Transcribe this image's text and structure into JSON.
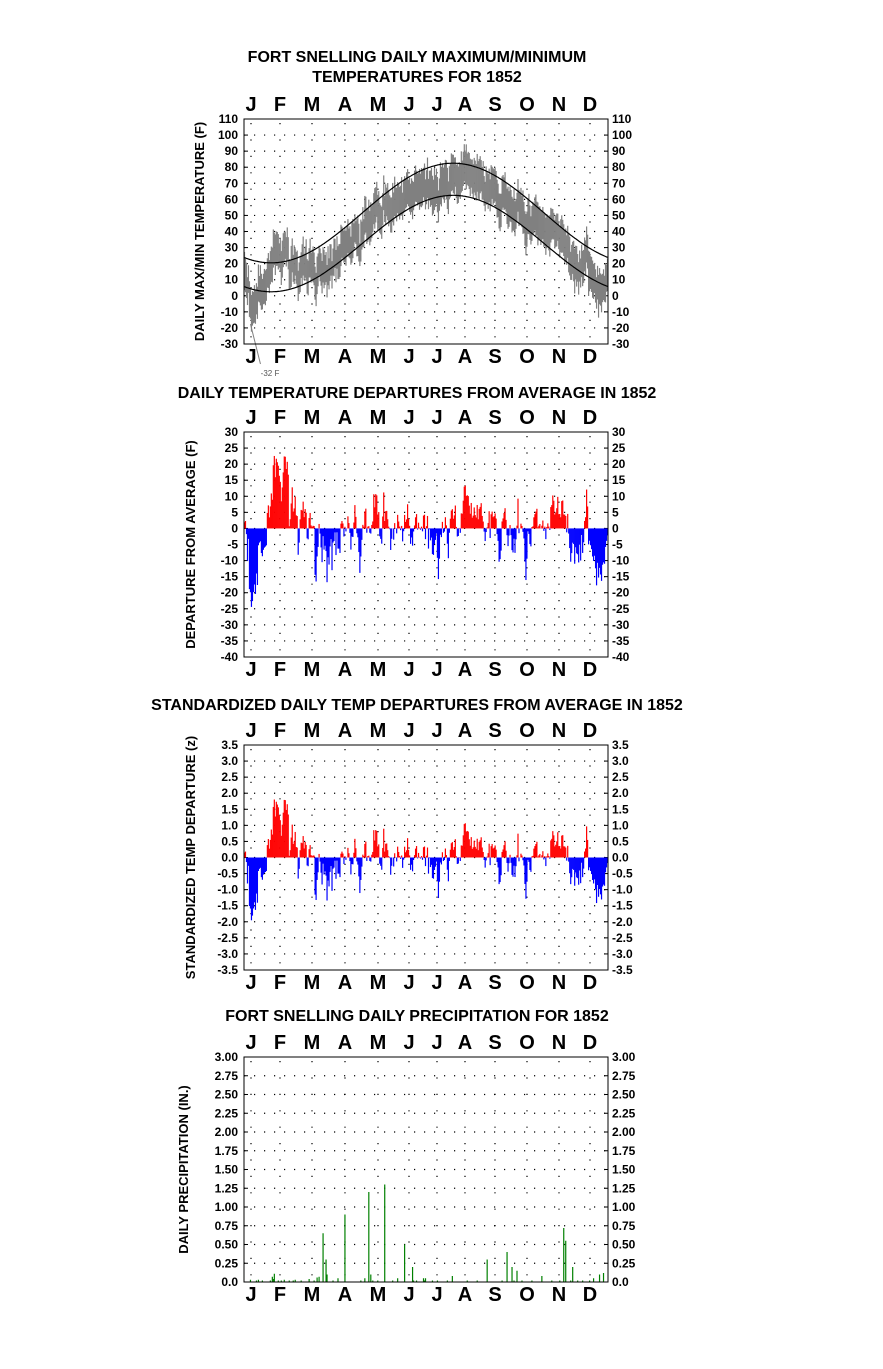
{
  "month_labels": [
    "J",
    "F",
    "M",
    "A",
    "M",
    "J",
    "J",
    "A",
    "S",
    "O",
    "N",
    "D"
  ],
  "colors": {
    "positive": "#ff0000",
    "negative": "#0000ff",
    "precip": "#008000",
    "observed": "#808080",
    "normal": "#000000",
    "axis": "#000000"
  },
  "chart_data": [
    {
      "id": "maxmin",
      "type": "line",
      "title": [
        "FORT SNELLING DAILY MAXIMUM/MINIMUM",
        "TEMPERATURES FOR 1852"
      ],
      "ylabel": "DAILY MAX/MIN TEMPERATURE (F)",
      "ylim": [
        -30,
        110
      ],
      "ytick_step": 10,
      "yticks": [
        "-30",
        "-20",
        "-10",
        "0",
        "10",
        "20",
        "30",
        "40",
        "50",
        "60",
        "70",
        "80",
        "90",
        "100",
        "110"
      ],
      "grid": "dotted",
      "annotation": "-32 F",
      "annotation_point": {
        "day": 9,
        "value": -32
      },
      "x_axis": "day of year 1852 (Jan-Dec)",
      "series": [
        {
          "role": "observed max/min",
          "style": "gray vertical daily range"
        },
        {
          "role": "normal max",
          "style": "black line",
          "values_monthly": [
            21,
            26,
            36,
            52,
            66,
            76,
            82,
            80,
            72,
            58,
            40,
            26
          ]
        },
        {
          "role": "normal min",
          "style": "black line",
          "values_monthly": [
            3,
            7,
            17,
            32,
            44,
            55,
            62,
            60,
            50,
            38,
            22,
            8
          ]
        }
      ]
    },
    {
      "id": "departure",
      "type": "bar",
      "title": [
        "DAILY TEMPERATURE DEPARTURES FROM AVERAGE IN 1852"
      ],
      "ylabel": "DEPARTURE FROM AVERAGE (F)",
      "ylim": [
        -40,
        30
      ],
      "ytick_step": 5,
      "yticks": [
        "-40",
        "-35",
        "-30",
        "-25",
        "-20",
        "-15",
        "-10",
        "-5",
        "0",
        "5",
        "10",
        "15",
        "20",
        "25",
        "30"
      ],
      "grid": "dotted",
      "x_axis": "day of year 1852 (Jan-Dec)"
    },
    {
      "id": "zscore",
      "type": "bar",
      "title": [
        "STANDARDIZED DAILY TEMP DEPARTURES FROM AVERAGE IN 1852"
      ],
      "ylabel": "STANDARDIZED TEMP DEPARTURE (z)",
      "ylim": [
        -3.5,
        3.5
      ],
      "ytick_step": 0.5,
      "yticks": [
        "-3.5",
        "-3.0",
        "-2.5",
        "-2.0",
        "-1.5",
        "-1.0",
        "-0.5",
        "0.0",
        "0.5",
        "1.0",
        "1.5",
        "2.0",
        "2.5",
        "3.0",
        "3.5"
      ],
      "grid": "dotted",
      "x_axis": "day of year 1852 (Jan-Dec)"
    },
    {
      "id": "precip",
      "type": "bar",
      "title": [
        "FORT SNELLING DAILY PRECIPITATION FOR 1852"
      ],
      "ylabel": "DAILY PRECIPITATION (IN.)",
      "ylim": [
        0,
        3
      ],
      "ytick_step": 0.25,
      "yticks": [
        "0.0",
        "0.25",
        "0.50",
        "0.75",
        "1.00",
        "1.25",
        "1.50",
        "1.75",
        "2.00",
        "2.25",
        "2.50",
        "2.75",
        "3.00"
      ],
      "grid": "dotted",
      "x_axis": "day of year 1852 (Jan-Dec)",
      "days": [
        7,
        13,
        15,
        19,
        27,
        29,
        30,
        31,
        35,
        38,
        41,
        46,
        50,
        52,
        58,
        66,
        71,
        74,
        76,
        80,
        83,
        84,
        90,
        95,
        102,
        118,
        122,
        126,
        128,
        130,
        135,
        142,
        150,
        155,
        162,
        170,
        171,
        174,
        181,
        182,
        183,
        190,
        195,
        205,
        210,
        225,
        235,
        245,
        260,
        265,
        270,
        272,
        275,
        280,
        290,
        300,
        310,
        318,
        322,
        324,
        329,
        331,
        336,
        341,
        348,
        352,
        358,
        362
      ],
      "values": [
        0.03,
        0.02,
        0.03,
        0.02,
        0.02,
        0.07,
        0.04,
        0.11,
        0.02,
        0.02,
        0.03,
        0.02,
        0.02,
        0.03,
        0.02,
        0.04,
        0.02,
        0.06,
        0.07,
        0.65,
        0.3,
        0.1,
        0.02,
        0.05,
        0.9,
        0.02,
        0.05,
        1.2,
        0.1,
        0.02,
        0.02,
        1.3,
        0.02,
        0.05,
        0.5,
        0.2,
        0.02,
        0.02,
        0.05,
        0.02,
        0.05,
        0.02,
        0.02,
        0.02,
        0.08,
        0.02,
        0.02,
        0.3,
        0.02,
        0.4,
        0.2,
        0.02,
        0.15,
        0.02,
        0.02,
        0.08,
        0.02,
        0.02,
        0.72,
        0.55,
        0.02,
        0.2,
        0.02,
        0.02,
        0.02,
        0.05,
        0.1,
        0.12
      ]
    }
  ]
}
